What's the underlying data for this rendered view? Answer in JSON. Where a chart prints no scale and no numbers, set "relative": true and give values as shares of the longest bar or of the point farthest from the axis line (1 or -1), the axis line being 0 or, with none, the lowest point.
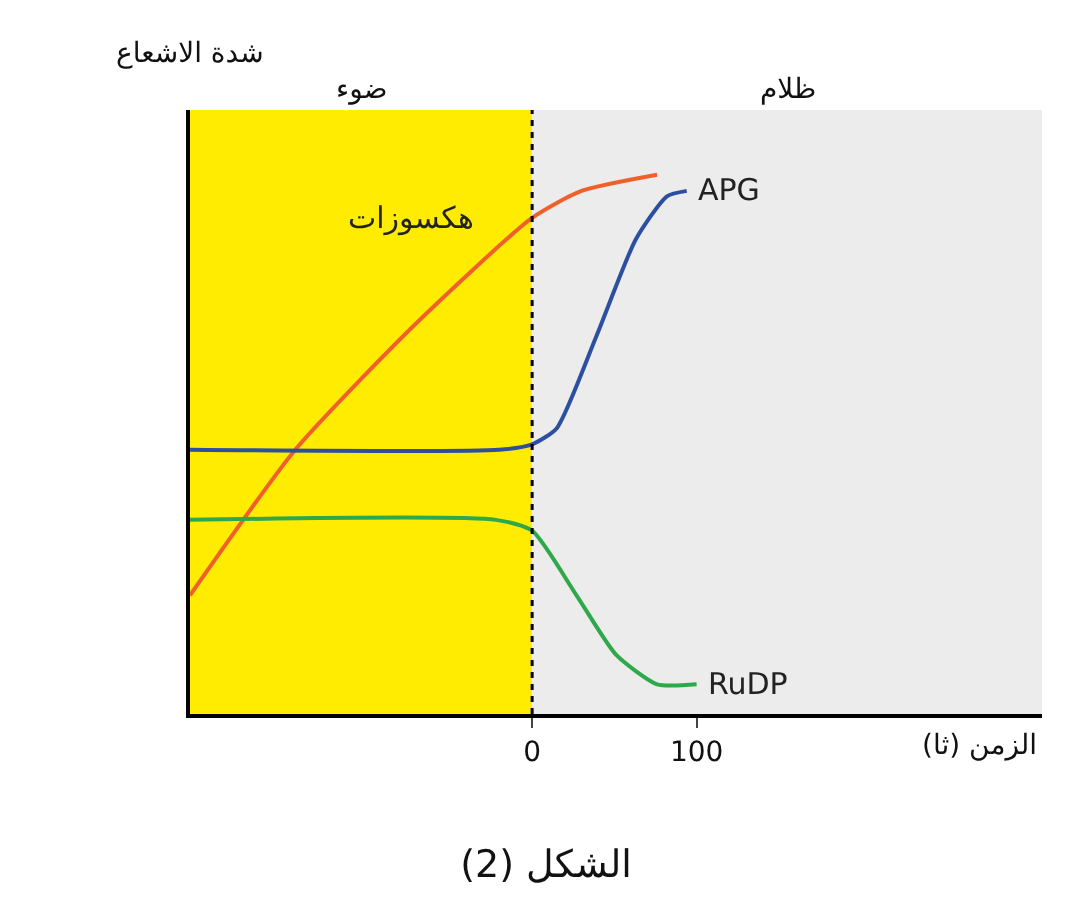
{
  "chart_data": {
    "type": "line",
    "title": "الشكل (2)",
    "xlabel": "الزمن (ثا)",
    "ylabel": "شدة الاشعاع",
    "relative": true,
    "xlim": [
      -208,
      310
    ],
    "xticks": [
      0,
      100
    ],
    "grid": false,
    "legend": false,
    "marker": "none",
    "line_style": "solid",
    "bands": [
      {
        "axis": "x",
        "from": -208,
        "to": 0,
        "label": "ضوء",
        "color": "#ffec00"
      },
      {
        "axis": "x",
        "from": 0,
        "to": 310,
        "label": "ظلام",
        "color": "#ececec"
      }
    ],
    "ref_lines": [
      {
        "axis": "x",
        "value": 0,
        "line_style": "dotted",
        "color": "#000000"
      }
    ],
    "series": [
      {
        "name": "هكسوزات",
        "color": "#f0602a",
        "x": [
          -208,
          -144,
          -72,
          0,
          30,
          76
        ],
        "values": [
          0.22,
          0.49,
          0.72,
          0.92,
          0.97,
          1.0
        ]
      },
      {
        "name": "APG",
        "color": "#2c4fa0",
        "x": [
          -208,
          -20,
          0,
          15,
          39,
          63,
          82,
          94
        ],
        "values": [
          0.49,
          0.49,
          0.5,
          0.53,
          0.7,
          0.88,
          0.96,
          0.97
        ]
      },
      {
        "name": "RuDP",
        "color": "#2fa84a",
        "x": [
          -208,
          -22,
          0,
          27,
          51,
          76,
          100
        ],
        "values": [
          0.36,
          0.36,
          0.34,
          0.22,
          0.11,
          0.055,
          0.055
        ]
      }
    ]
  }
}
